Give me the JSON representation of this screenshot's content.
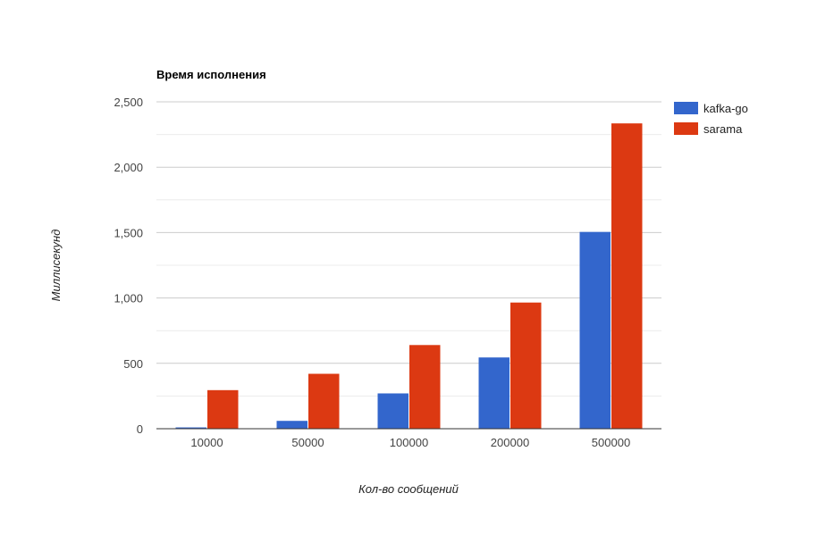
{
  "chart_data": {
    "type": "bar",
    "title": "Время исполнения",
    "xlabel": "Кол-во сообщений",
    "ylabel": "Миллисекунд",
    "categories": [
      "10000",
      "50000",
      "100000",
      "200000",
      "500000"
    ],
    "series": [
      {
        "name": "kafka-go",
        "color": "#3366cc",
        "values": [
          10,
          60,
          270,
          545,
          1505
        ]
      },
      {
        "name": "sarama",
        "color": "#dc3912",
        "values": [
          295,
          420,
          640,
          965,
          2335
        ]
      }
    ],
    "ylim": [
      0,
      2500
    ],
    "yticks": [
      0,
      500,
      1000,
      1500,
      2000,
      2500
    ],
    "ytick_labels": [
      "0",
      "500",
      "1,000",
      "1,500",
      "2,000",
      "2,500"
    ],
    "grid": true,
    "legend_position": "right"
  }
}
